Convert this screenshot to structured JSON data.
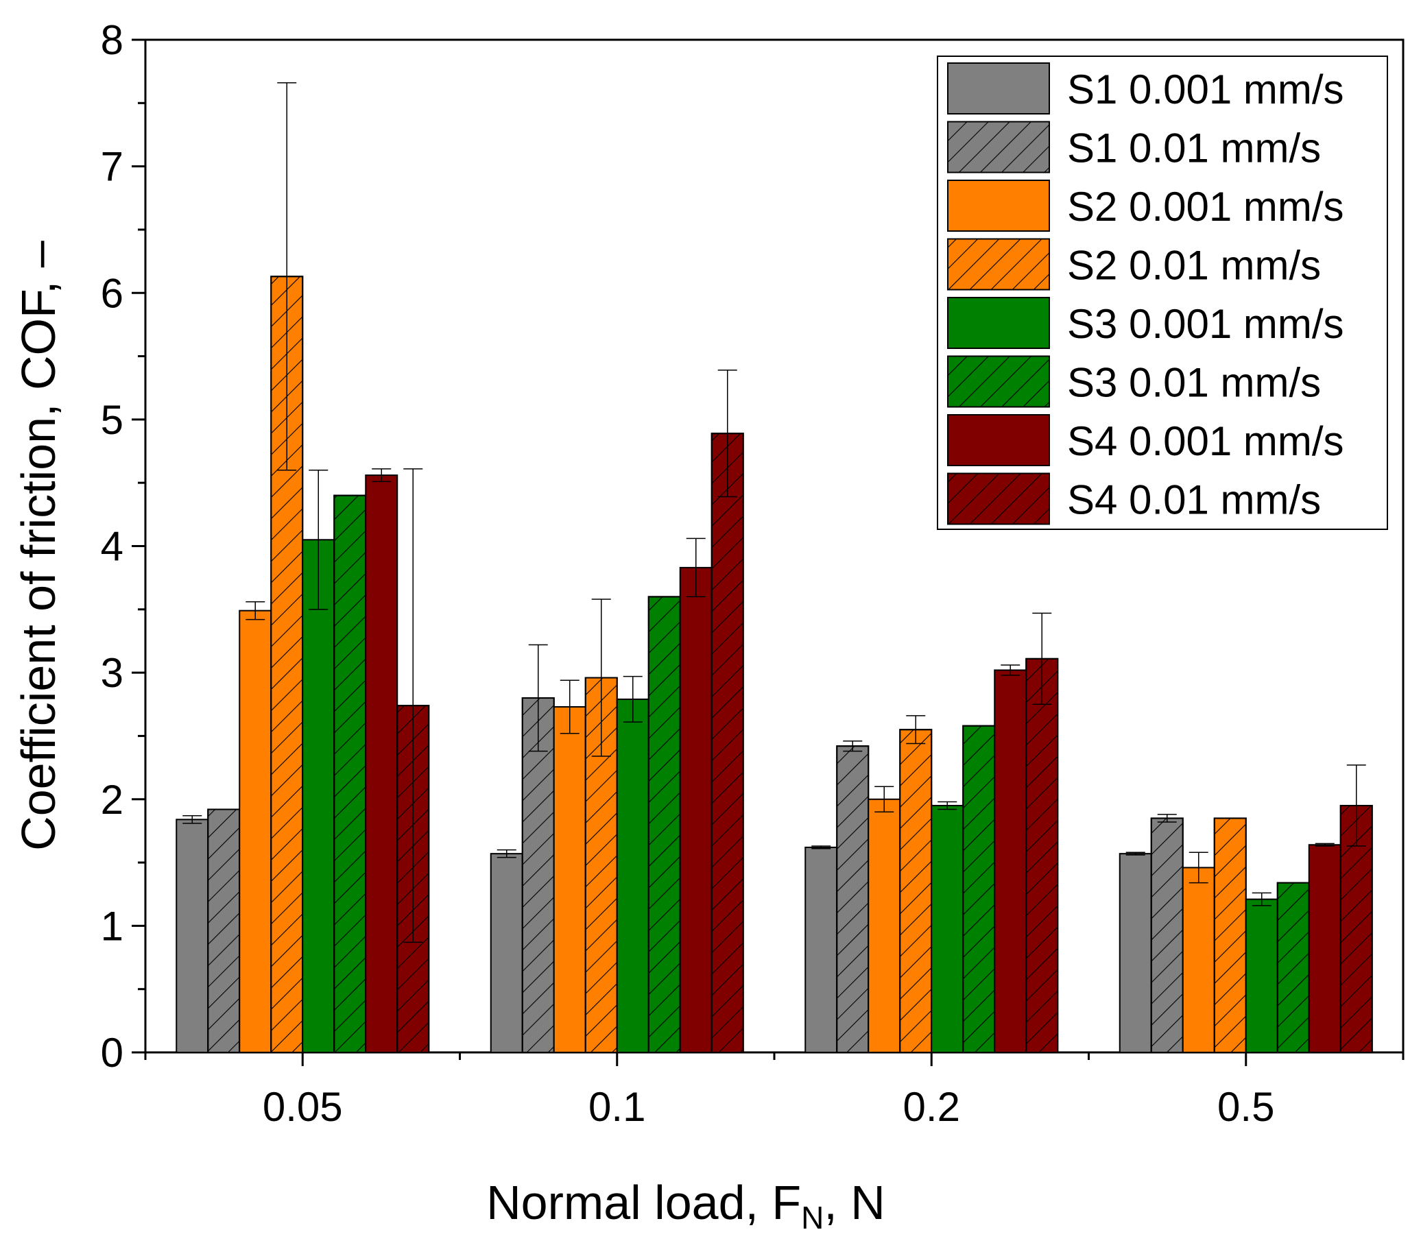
{
  "chart_data": {
    "type": "bar",
    "title": "",
    "xlabel": {
      "main": "Normal load,   F",
      "sub": "N",
      "unit": ",   N"
    },
    "ylabel": "Coefficient of friction,   COF,   –",
    "categories": [
      "0.05",
      "0.1",
      "0.2",
      "0.5"
    ],
    "ylim": [
      0,
      8
    ],
    "yticks": [
      "0",
      "1",
      "2",
      "3",
      "4",
      "5",
      "6",
      "7",
      "8"
    ],
    "legend_position": "top-right",
    "series": [
      {
        "name": "S1 0.001 mm/s",
        "color": "#808080",
        "hatch": false,
        "values": [
          1.84,
          1.57,
          1.62,
          1.57
        ],
        "errors": [
          0.03,
          0.03,
          0.01,
          0.01
        ]
      },
      {
        "name": "S1 0.01 mm/s",
        "color": "#808080",
        "hatch": true,
        "values": [
          1.92,
          2.8,
          2.42,
          1.85
        ],
        "errors": [
          0.0,
          0.42,
          0.04,
          0.03
        ]
      },
      {
        "name": "S2 0.001 mm/s",
        "color": "#FF8000",
        "hatch": false,
        "values": [
          3.49,
          2.73,
          2.0,
          1.46
        ],
        "errors": [
          0.07,
          0.21,
          0.1,
          0.12
        ]
      },
      {
        "name": "S2 0.01 mm/s",
        "color": "#FF8000",
        "hatch": true,
        "values": [
          6.13,
          2.96,
          2.55,
          1.85
        ],
        "errors": [
          1.53,
          0.62,
          0.11,
          0.0
        ]
      },
      {
        "name": "S3 0.001 mm/s",
        "color": "#008000",
        "hatch": false,
        "values": [
          4.05,
          2.79,
          1.95,
          1.21
        ],
        "errors": [
          0.55,
          0.18,
          0.03,
          0.05
        ]
      },
      {
        "name": "S3 0.01 mm/s",
        "color": "#008000",
        "hatch": true,
        "values": [
          4.4,
          3.6,
          2.58,
          1.34
        ],
        "errors": [
          0.0,
          0.0,
          0.0,
          0.0
        ]
      },
      {
        "name": "S4 0.001 mm/s",
        "color": "#800000",
        "hatch": false,
        "values": [
          4.56,
          3.83,
          3.02,
          1.64
        ],
        "errors": [
          0.05,
          0.23,
          0.04,
          0.01
        ]
      },
      {
        "name": "S4 0.01 mm/s",
        "color": "#800000",
        "hatch": true,
        "values": [
          2.74,
          4.89,
          3.11,
          1.95
        ],
        "errors": [
          1.87,
          0.5,
          0.36,
          0.32
        ]
      }
    ]
  }
}
